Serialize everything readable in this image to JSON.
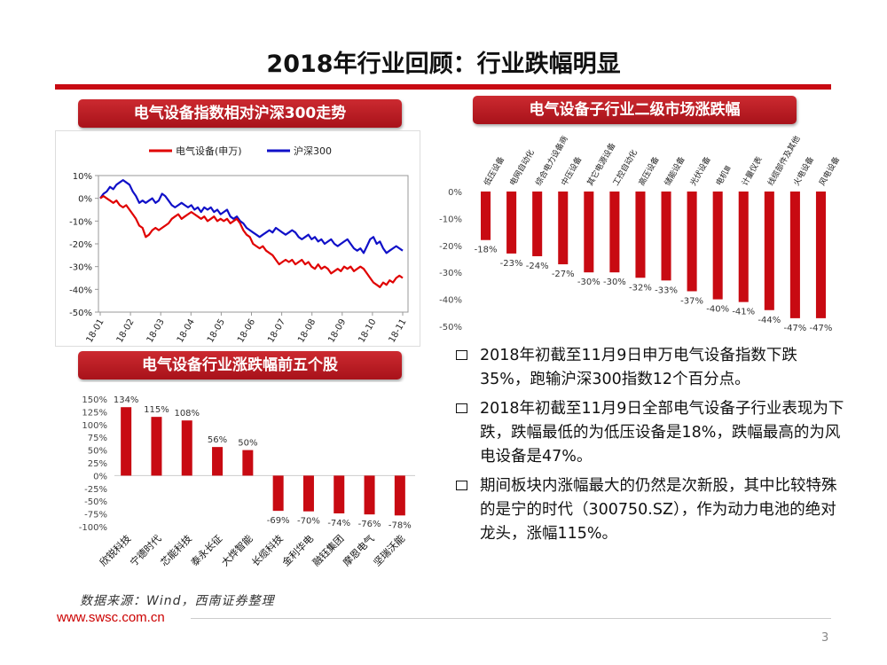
{
  "page": {
    "title": "2018年行业回顾：行业跌幅明显",
    "source": "数据来源：Wind，西南证券整理",
    "url": "www.swsc.com.cn",
    "page_number": "3",
    "accent_color": "#c80a12"
  },
  "panels": {
    "line_title": "电气设备指数相对沪深300走势",
    "sub_title": "电气设备子行业二级市场涨跌幅",
    "stock_title": "电气设备行业涨跌幅前五个股"
  },
  "bullets": [
    "2018年初截至11月9日申万电气设备指数下跌35%，跑输沪深300指数12个百分点。",
    "2018年初截至11月9日全部电气设备子行业表现为下跌，跌幅最低的为低压设备是18%，跌幅最高的为风电设备是47%。",
    "期间板块内涨幅最大的仍然是次新股，其中比较特殊的是宁的时代（300750.SZ），作为动力电池的绝对龙头，涨幅115%。"
  ],
  "chart_data": [
    {
      "type": "line",
      "legend": [
        {
          "name": "电气设备(申万)",
          "color": "#e00000"
        },
        {
          "name": "沪深300",
          "color": "#1010c8"
        }
      ],
      "ylim": [
        -50,
        10
      ],
      "yticks": [
        "10%",
        "0%",
        "-10%",
        "-20%",
        "-30%",
        "-40%",
        "-50%"
      ],
      "xticks": [
        "18-01",
        "18-02",
        "18-03",
        "18-04",
        "18-05",
        "18-06",
        "18-07",
        "18-08",
        "18-09",
        "18-10",
        "18-11"
      ],
      "series": [
        {
          "name": "电气设备(申万)",
          "color": "#e00000",
          "values": [
            0,
            1,
            0,
            -1,
            -2,
            -1,
            -3,
            -4,
            -3,
            -5,
            -7,
            -9,
            -12,
            -13,
            -17,
            -16,
            -14,
            -13,
            -14,
            -13,
            -12,
            -11,
            -9,
            -8,
            -7,
            -9,
            -8,
            -7,
            -6,
            -7,
            -8,
            -9,
            -8,
            -10,
            -9,
            -8,
            -10,
            -9,
            -10,
            -9,
            -11,
            -10,
            -9,
            -11,
            -14,
            -16,
            -17,
            -20,
            -21,
            -22,
            -21,
            -23,
            -24,
            -25,
            -27,
            -29,
            -28,
            -27,
            -28,
            -27,
            -29,
            -28,
            -27,
            -29,
            -28,
            -30,
            -31,
            -29,
            -31,
            -30,
            -31,
            -33,
            -32,
            -31,
            -32,
            -30,
            -31,
            -30,
            -32,
            -31,
            -30,
            -31,
            -33,
            -35,
            -37,
            -38,
            -39,
            -37,
            -38,
            -36,
            -37,
            -35,
            -34,
            -35
          ]
        },
        {
          "name": "沪深300",
          "color": "#1010c8",
          "values": [
            0,
            2,
            3,
            5,
            4,
            6,
            7,
            8,
            7,
            6,
            3,
            1,
            -2,
            -1,
            -2,
            -1,
            0,
            -2,
            -1,
            2,
            1,
            -1,
            -3,
            -4,
            -3,
            -2,
            -3,
            -4,
            -3,
            -5,
            -4,
            -6,
            -4,
            -5,
            -4,
            -6,
            -5,
            -7,
            -6,
            -5,
            -8,
            -9,
            -8,
            -10,
            -11,
            -13,
            -14,
            -15,
            -16,
            -17,
            -16,
            -15,
            -14,
            -15,
            -13,
            -14,
            -15,
            -16,
            -15,
            -14,
            -15,
            -17,
            -18,
            -17,
            -16,
            -18,
            -17,
            -19,
            -18,
            -20,
            -19,
            -18,
            -20,
            -21,
            -20,
            -19,
            -18,
            -20,
            -22,
            -23,
            -22,
            -24,
            -21,
            -18,
            -17,
            -20,
            -19,
            -22,
            -24,
            -23,
            -22,
            -21,
            -22,
            -23
          ]
        }
      ]
    },
    {
      "type": "bar",
      "title": "电气设备子行业二级市场涨跌幅",
      "categories": [
        "低压设备",
        "电网自动化",
        "综合电力设备商",
        "中压设备",
        "其它电源设备",
        "工控自动化",
        "高压设备",
        "储能设备",
        "光伏设备",
        "电机Ⅲ",
        "计量仪表",
        "线缆部件及其他",
        "火电设备",
        "风电设备"
      ],
      "values": [
        -18,
        -23,
        -24,
        -27,
        -30,
        -30,
        -32,
        -33,
        -37,
        -40,
        -41,
        -44,
        -47,
        -47
      ],
      "labels": [
        "-18%",
        "-23%",
        "-24%",
        "-27%",
        "-30%",
        "-30%",
        "-32%",
        "-33%",
        "-37%",
        "-40%",
        "-41%",
        "-44%",
        "-47%",
        "-47%"
      ],
      "yticks": [
        "0%",
        "-10%",
        "-20%",
        "-30%",
        "-40%",
        "-50%"
      ],
      "ylim": [
        -50,
        0
      ],
      "color": "#c80a12"
    },
    {
      "type": "bar",
      "title": "电气设备行业涨跌幅前五个股",
      "categories": [
        "欣锐科技",
        "宁德时代",
        "芯能科技",
        "泰永长征",
        "大烨智能",
        "长缆科技",
        "金利华电",
        "融钰集团",
        "摩恩电气",
        "坚瑞沃能"
      ],
      "values": [
        134,
        115,
        108,
        56,
        50,
        -69,
        -70,
        -74,
        -76,
        -78
      ],
      "labels": [
        "134%",
        "115%",
        "108%",
        "56%",
        "50%",
        "-69%",
        "-70%",
        "-74%",
        "-76%",
        "-78%"
      ],
      "yticks": [
        "150%",
        "125%",
        "100%",
        "75%",
        "50%",
        "25%",
        "0%",
        "-25%",
        "-50%",
        "-75%",
        "-100%"
      ],
      "ylim": [
        -100,
        150
      ],
      "color": "#c80a12"
    }
  ]
}
